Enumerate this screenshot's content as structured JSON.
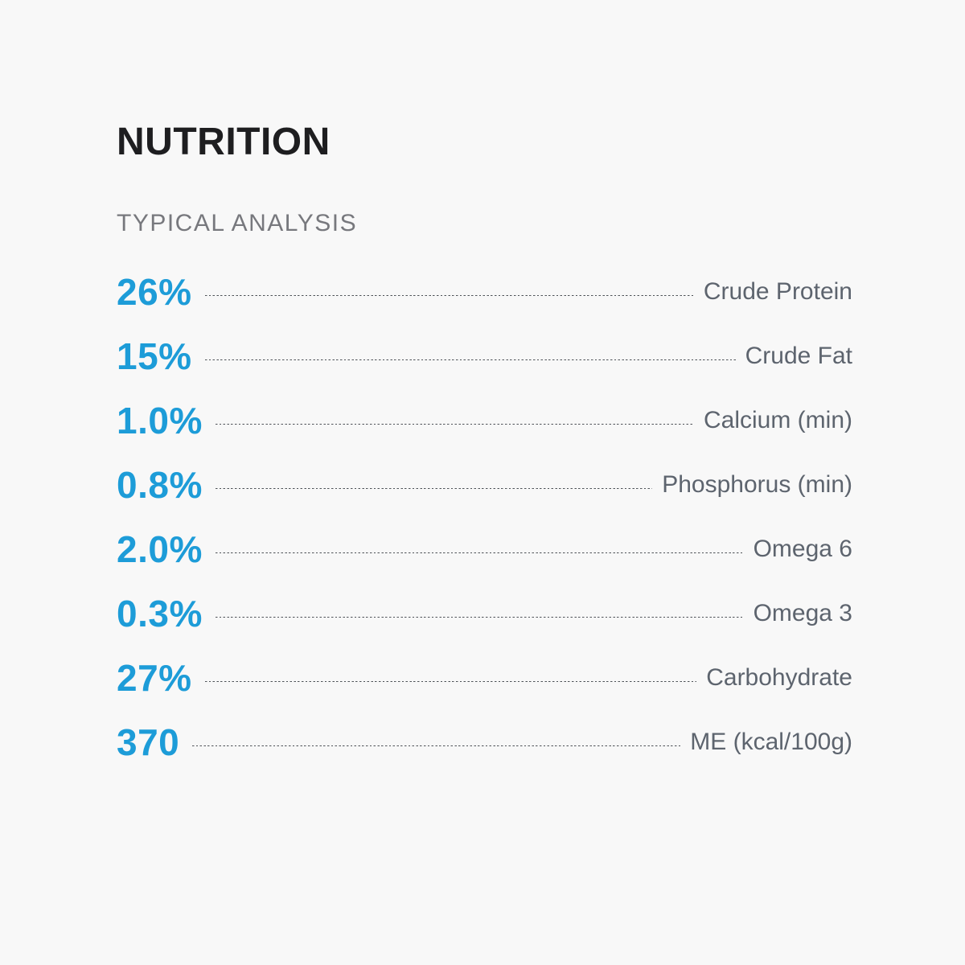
{
  "section": {
    "title": "NUTRITION",
    "subtitle": "TYPICAL ANALYSIS"
  },
  "analysis": {
    "rows": [
      {
        "value": "26%",
        "label": "Crude Protein"
      },
      {
        "value": "15%",
        "label": "Crude Fat"
      },
      {
        "value": "1.0%",
        "label": "Calcium (min)"
      },
      {
        "value": "0.8%",
        "label": "Phosphorus (min)"
      },
      {
        "value": "2.0%",
        "label": "Omega 6"
      },
      {
        "value": "0.3%",
        "label": "Omega 3"
      },
      {
        "value": "27%",
        "label": "Carbohydrate"
      },
      {
        "value": "370",
        "label": "ME (kcal/100g)"
      }
    ]
  },
  "colors": {
    "background": "#f8f8f8",
    "title": "#1e1e20",
    "subtitle": "#77787d",
    "value_accent": "#1d9cd8",
    "label": "#5d646e",
    "leader_dots": "#4e5257"
  }
}
